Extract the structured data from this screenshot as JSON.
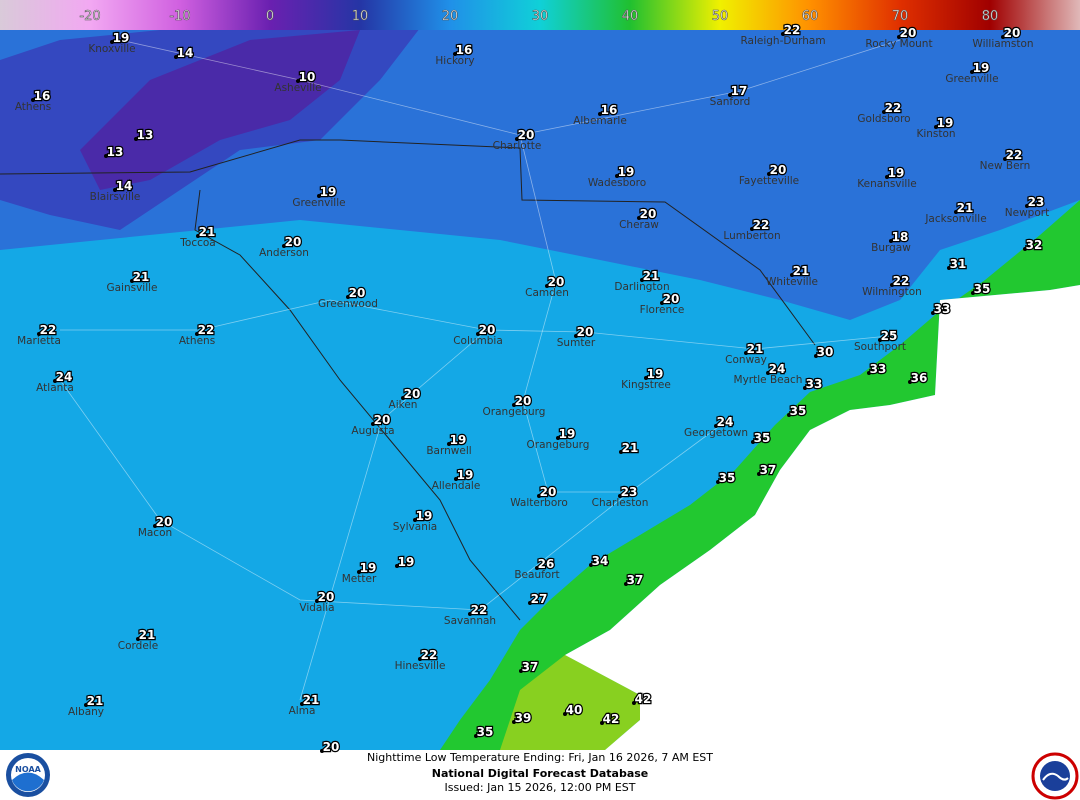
{
  "legend": {
    "lim": [
      -30,
      90
    ],
    "ticks": [
      -20,
      -10,
      0,
      10,
      20,
      30,
      40,
      50,
      60,
      70,
      80
    ],
    "colors": [
      "#d9cad9",
      "#f2a8f2",
      "#d060e0",
      "#6a20b0",
      "#2535a5",
      "#2090e8",
      "#10d0d8",
      "#20c030",
      "#f0f000",
      "#ff9000",
      "#e03000",
      "#a00000",
      "#e0b8b8"
    ]
  },
  "map": {
    "cities": [
      {
        "name": "Knoxville",
        "temp": 19
      },
      {
        "temp": 14
      },
      {
        "name": "Hickory",
        "temp": 16
      },
      {
        "name": "Raleigh-Durham",
        "temp": 22
      },
      {
        "name": "Rocky Mount",
        "temp": 20
      },
      {
        "name": "Williamston",
        "temp": 20
      },
      {
        "name": "Asheville",
        "temp": 10
      },
      {
        "name": "Greenville",
        "temp": 19
      },
      {
        "name": "Athens",
        "temp": 16
      },
      {
        "name": "Albemarle",
        "temp": 16
      },
      {
        "name": "Sanford",
        "temp": 17
      },
      {
        "name": "Goldsboro",
        "temp": 22
      },
      {
        "name": "Kinston",
        "temp": 19
      },
      {
        "name": "Charlotte",
        "temp": 20
      },
      {
        "name": "New Bern",
        "temp": 22
      },
      {
        "temp": 13
      },
      {
        "temp": 13
      },
      {
        "name": "Wadesboro",
        "temp": 19
      },
      {
        "name": "Fayetteville",
        "temp": 20
      },
      {
        "name": "Kenansville",
        "temp": 19
      },
      {
        "name": "Blairsville",
        "temp": 14
      },
      {
        "name": "Greenville",
        "temp": 19
      },
      {
        "name": "Jacksonville",
        "temp": 21
      },
      {
        "name": "Newport",
        "temp": 23
      },
      {
        "name": "Toccoa",
        "temp": 21
      },
      {
        "name": "Anderson",
        "temp": 20
      },
      {
        "name": "Cheraw",
        "temp": 20
      },
      {
        "name": "Lumberton",
        "temp": 22
      },
      {
        "name": "Burgaw",
        "temp": 18
      },
      {
        "temp": 32
      },
      {
        "name": "Gainsville",
        "temp": 21
      },
      {
        "name": "Camden",
        "temp": 20
      },
      {
        "name": "Darlington",
        "temp": 21
      },
      {
        "name": "Whiteville",
        "temp": 21
      },
      {
        "name": "Wilmington",
        "temp": 22
      },
      {
        "temp": 31
      },
      {
        "temp": 35
      },
      {
        "temp": 33
      },
      {
        "name": "Greenwood",
        "temp": 20
      },
      {
        "name": "Florence",
        "temp": 20
      },
      {
        "name": "Marietta",
        "temp": 22
      },
      {
        "name": "Athens",
        "temp": 22
      },
      {
        "name": "Columbia",
        "temp": 20
      },
      {
        "name": "Sumter",
        "temp": 20
      },
      {
        "name": "Southport",
        "temp": 25
      },
      {
        "name": "Conway",
        "temp": 21
      },
      {
        "temp": 30
      },
      {
        "name": "Atlanta",
        "temp": 24
      },
      {
        "name": "Kingstree",
        "temp": 19
      },
      {
        "name": "Myrtle Beach",
        "temp": 24
      },
      {
        "temp": 33
      },
      {
        "temp": 33
      },
      {
        "temp": 36
      },
      {
        "name": "Aiken",
        "temp": 20
      },
      {
        "name": "Orangeburg",
        "temp": 20
      },
      {
        "name": "Augusta",
        "temp": 20
      },
      {
        "temp": 35
      },
      {
        "name": "Georgetown",
        "temp": 24
      },
      {
        "name": "Orangeburg",
        "temp": 19
      },
      {
        "name": "Barnwell",
        "temp": 19
      },
      {
        "temp": 35
      },
      {
        "temp": 21
      },
      {
        "name": "Allendale",
        "temp": 19
      },
      {
        "temp": 37
      },
      {
        "name": "Walterboro",
        "temp": 20
      },
      {
        "name": "Charleston",
        "temp": 23
      },
      {
        "temp": 35
      },
      {
        "name": "Macon",
        "temp": 20
      },
      {
        "name": "Sylvania",
        "temp": 19
      },
      {
        "name": "Metter",
        "temp": 19
      },
      {
        "temp": 19
      },
      {
        "name": "Beaufort",
        "temp": 26
      },
      {
        "temp": 34
      },
      {
        "temp": 37
      },
      {
        "name": "Vidalia",
        "temp": 20
      },
      {
        "temp": 27
      },
      {
        "name": "Savannah",
        "temp": 22
      },
      {
        "name": "Cordele",
        "temp": 21
      },
      {
        "name": "Hinesville",
        "temp": 22
      },
      {
        "temp": 37
      },
      {
        "temp": 39
      },
      {
        "temp": 40
      },
      {
        "temp": 42
      },
      {
        "temp": 42
      },
      {
        "temp": 35
      },
      {
        "name": "Albany",
        "temp": 21
      },
      {
        "name": "Alma",
        "temp": 21
      },
      {
        "temp": 20
      }
    ]
  },
  "footer": {
    "line1": "Nighttime Low Temperature Ending: Fri, Jan 16 2026, 7 AM EST",
    "line2": "National Digital Forecast Database",
    "line3": "Issued: Jan 15 2026, 12:00 PM EST",
    "left_logo": "NOAA"
  }
}
